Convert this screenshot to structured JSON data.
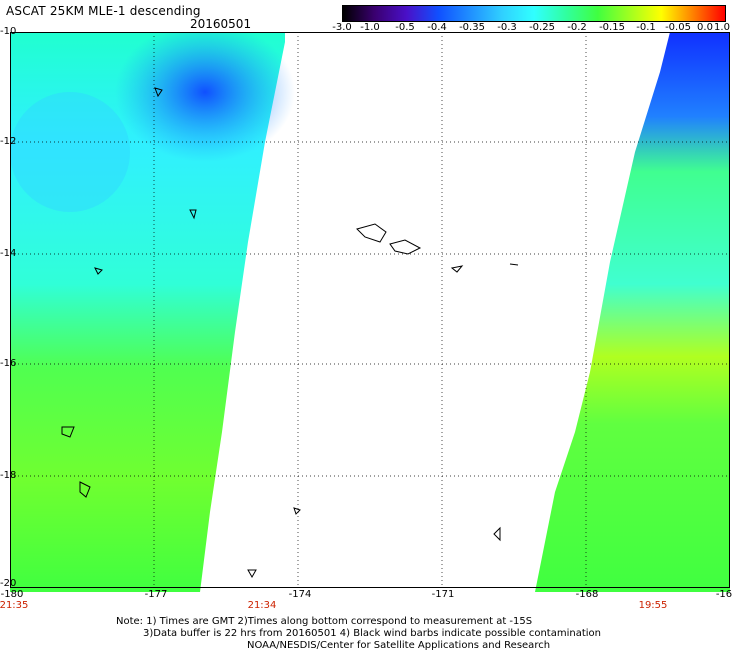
{
  "header": {
    "title": "ASCAT 25KM MLE-1 descending",
    "date": "20160501"
  },
  "colorbar": {
    "labels": [
      "-3.0",
      "-1.0",
      "-0.5",
      "-0.4",
      "-0.35",
      "-0.3",
      "-0.25",
      "-0.2",
      "-0.15",
      "-0.1",
      "-0.05",
      "0.0",
      "1.0"
    ],
    "colors": [
      "#000000",
      "#3a0070",
      "#4a10c8",
      "#1050ff",
      "#2090ff",
      "#30d0ff",
      "#30ffff",
      "#30ffa0",
      "#40ff40",
      "#a0ff20",
      "#ffff00",
      "#ff8000",
      "#ff0000"
    ]
  },
  "axes": {
    "y_labels": [
      "-10",
      "-12",
      "-14",
      "-16",
      "-18",
      "-20"
    ],
    "x_labels": [
      "-180",
      "-177",
      "-174",
      "-171",
      "-168",
      "-16"
    ]
  },
  "times": [
    "21:35",
    "21:34",
    "19:55"
  ],
  "notes": {
    "line1": "Note: 1) Times are GMT 2)Times along bottom correspond to measurement at -15S",
    "line2": "3)Data buffer is 22 hrs from 20160501 4) Black wind barbs indicate possible contamination",
    "line3": "NOAA/NESDIS/Center for Satellite Applications and Research"
  }
}
